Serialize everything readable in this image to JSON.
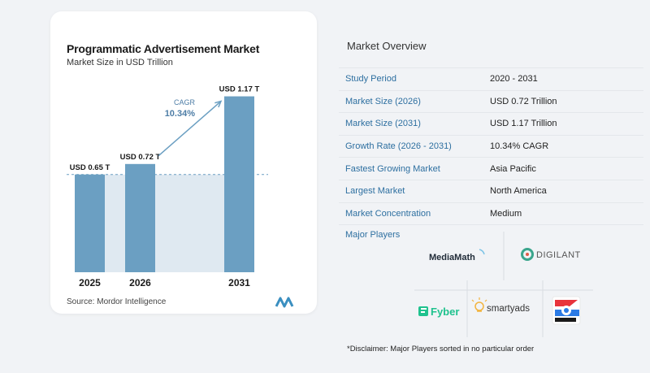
{
  "chart": {
    "title": "Programmatic Advertisement Market",
    "subtitle": "Market Size in USD Trillion",
    "source": "Source:  Mordor Intelligence",
    "cagr_label": "CAGR",
    "cagr_value": "10.34%"
  },
  "chart_data": {
    "type": "bar",
    "title": "Programmatic Advertisement Market",
    "subtitle": "Market Size in USD Trillion",
    "categories": [
      "2025",
      "2026",
      "2031"
    ],
    "values": [
      0.65,
      0.72,
      1.17
    ],
    "data_labels": [
      "USD 0.65 T",
      "USD 0.72 T",
      "USD 1.17 T"
    ],
    "ylim": [
      0,
      1.2
    ],
    "annotation": "CAGR 10.34%",
    "colors": {
      "bar": "#6b9fc2",
      "bar_dark": "#4d7da6",
      "band": "#dfe9f1",
      "arrow": "#6b9fc2"
    }
  },
  "overview": {
    "title": "Market Overview",
    "rows": [
      {
        "label": "Study Period",
        "value": "2020 - 2031"
      },
      {
        "label": "Market Size (2026)",
        "value": "USD 0.72 Trillion"
      },
      {
        "label": "Market Size (2031)",
        "value": "USD 1.17 Trillion"
      },
      {
        "label": "Growth Rate (2026 - 2031)",
        "value": "10.34% CAGR"
      },
      {
        "label": "Fastest Growing Market",
        "value": "Asia Pacific"
      },
      {
        "label": "Largest Market",
        "value": "North America"
      },
      {
        "label": "Market Concentration",
        "value": "Medium"
      }
    ]
  },
  "players": {
    "title": "Major Players",
    "names": [
      "MediaMath",
      "DIGILANT",
      "Fyber",
      "smartyads"
    ],
    "disclaimer": "*Disclaimer: Major Players sorted in no particular order"
  }
}
